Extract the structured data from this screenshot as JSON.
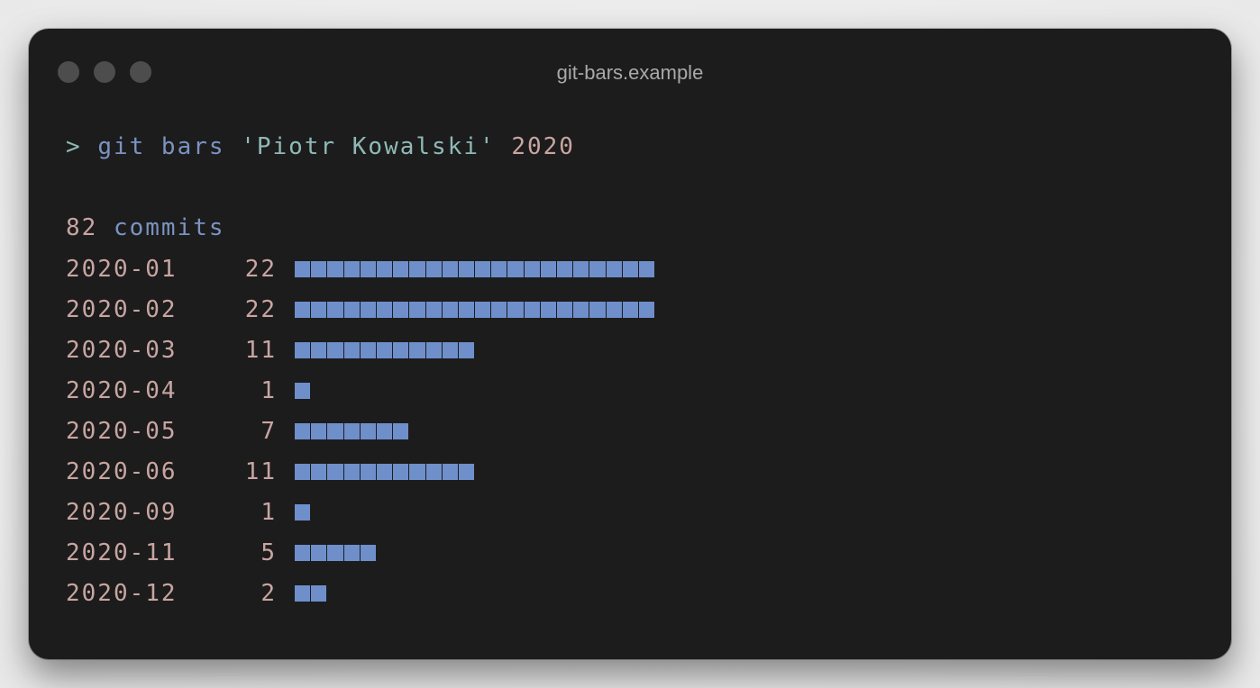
{
  "window": {
    "title": "git-bars.example"
  },
  "terminal": {
    "prompt_symbol": ">",
    "command": "git bars",
    "author_arg": "'Piotr Kowalski'",
    "year_arg": "2020",
    "summary_count": "82",
    "summary_label": "commits"
  },
  "colors": {
    "background": "#1c1c1c",
    "bar": "#6f8fcb",
    "number_text": "#c9a5a2",
    "keyword_text": "#7b93c2",
    "string_text": "#8fb9b7"
  },
  "chart_data": {
    "type": "bar",
    "orientation": "horizontal",
    "categories": [
      "2020-01",
      "2020-02",
      "2020-03",
      "2020-04",
      "2020-05",
      "2020-06",
      "2020-09",
      "2020-11",
      "2020-12"
    ],
    "values": [
      22,
      22,
      11,
      1,
      7,
      11,
      1,
      5,
      2
    ]
  }
}
